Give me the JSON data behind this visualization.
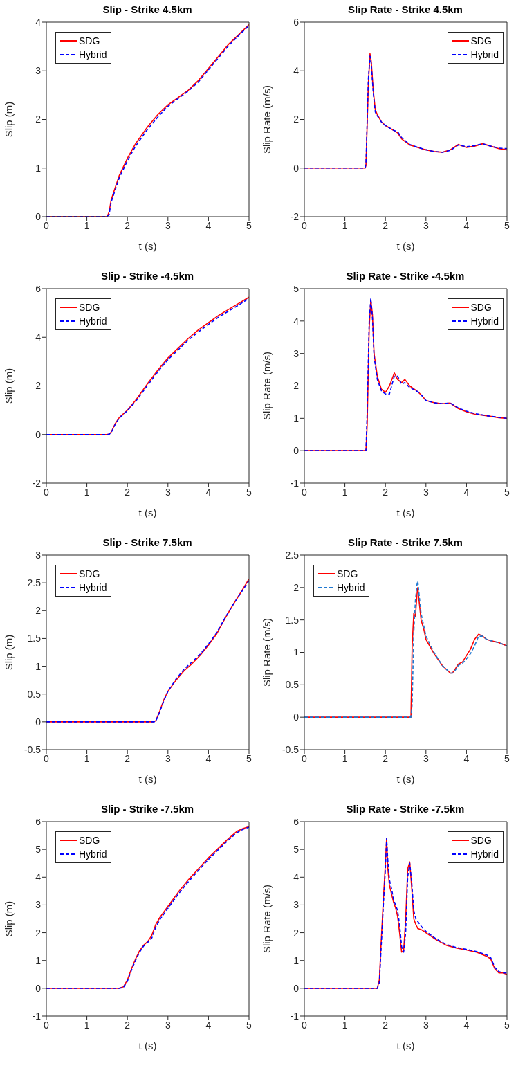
{
  "chart_data": [
    {
      "type": "line",
      "title": "Slip - Strike 4.5km",
      "xlabel": "t (s)",
      "ylabel": "Slip (m)",
      "xlim": [
        0,
        5
      ],
      "xticks": [
        0,
        1,
        2,
        3,
        4,
        5
      ],
      "ylim": [
        0,
        4
      ],
      "yticks": [
        0,
        1,
        2,
        3,
        4
      ],
      "legend": "top left",
      "marker": "none",
      "x": [
        0,
        1.5,
        1.55,
        1.6,
        1.7,
        1.8,
        2,
        2.2,
        2.5,
        2.75,
        3,
        3.25,
        3.5,
        3.75,
        4,
        4.25,
        4.5,
        4.75,
        5
      ],
      "series": [
        {
          "name": "SDG",
          "color": "#ff0000",
          "line_style": "solid",
          "values": [
            0,
            0,
            0.1,
            0.35,
            0.6,
            0.85,
            1.2,
            1.5,
            1.85,
            2.1,
            2.3,
            2.45,
            2.6,
            2.8,
            3.05,
            3.3,
            3.55,
            3.75,
            3.95
          ]
        },
        {
          "name": "Hybrid",
          "color": "#0000ff",
          "line_style": "dashed",
          "values": [
            0,
            0,
            0.05,
            0.3,
            0.55,
            0.8,
            1.15,
            1.45,
            1.8,
            2.05,
            2.27,
            2.43,
            2.58,
            2.77,
            3.02,
            3.27,
            3.52,
            3.73,
            3.93
          ]
        }
      ]
    },
    {
      "type": "line",
      "title": "Slip Rate - Strike 4.5km",
      "xlabel": "t (s)",
      "ylabel": "Slip Rate (m/s)",
      "xlim": [
        0,
        5
      ],
      "xticks": [
        0,
        1,
        2,
        3,
        4,
        5
      ],
      "ylim": [
        -2,
        6
      ],
      "yticks": [
        -2,
        0,
        2,
        4,
        6
      ],
      "legend": "top right",
      "marker": "none",
      "x": [
        0,
        1.5,
        1.52,
        1.58,
        1.62,
        1.65,
        1.7,
        1.75,
        1.8,
        1.9,
        2,
        2.2,
        2.3,
        2.4,
        2.6,
        2.8,
        3,
        3.2,
        3.4,
        3.6,
        3.8,
        4,
        4.2,
        4.4,
        4.6,
        4.8,
        5
      ],
      "series": [
        {
          "name": "SDG",
          "color": "#ff0000",
          "line_style": "solid",
          "values": [
            0,
            0,
            0.1,
            3.5,
            4.7,
            4.4,
            3.2,
            2.4,
            2.2,
            1.9,
            1.75,
            1.55,
            1.45,
            1.2,
            0.95,
            0.85,
            0.75,
            0.68,
            0.65,
            0.75,
            0.97,
            0.85,
            0.9,
            1.0,
            0.9,
            0.8,
            0.75
          ]
        },
        {
          "name": "Hybrid",
          "color": "#0000ff",
          "line_style": "dashed",
          "values": [
            0,
            0,
            0.2,
            3.7,
            4.6,
            4.3,
            3.1,
            2.3,
            2.15,
            1.9,
            1.75,
            1.55,
            1.5,
            1.25,
            0.97,
            0.85,
            0.75,
            0.68,
            0.65,
            0.72,
            0.95,
            0.88,
            0.92,
            1.0,
            0.9,
            0.82,
            0.8
          ]
        }
      ]
    },
    {
      "type": "line",
      "title": "Slip - Strike -4.5km",
      "xlabel": "t (s)",
      "ylabel": "Slip (m)",
      "xlim": [
        0,
        5
      ],
      "xticks": [
        0,
        1,
        2,
        3,
        4,
        5
      ],
      "ylim": [
        -2,
        6
      ],
      "yticks": [
        -2,
        0,
        2,
        4,
        6
      ],
      "legend": "top left",
      "marker": "none",
      "x": [
        0,
        1.5,
        1.55,
        1.6,
        1.7,
        1.8,
        2,
        2.2,
        2.5,
        2.75,
        3,
        3.25,
        3.5,
        3.75,
        4,
        4.25,
        4.5,
        4.75,
        5
      ],
      "series": [
        {
          "name": "SDG",
          "color": "#ff0000",
          "line_style": "solid",
          "values": [
            0,
            0,
            0.02,
            0.1,
            0.45,
            0.7,
            1.0,
            1.4,
            2.1,
            2.65,
            3.15,
            3.55,
            3.95,
            4.3,
            4.6,
            4.9,
            5.15,
            5.4,
            5.65
          ]
        },
        {
          "name": "Hybrid",
          "color": "#0000ff",
          "line_style": "dashed",
          "values": [
            0,
            0,
            0.01,
            0.08,
            0.42,
            0.68,
            0.98,
            1.35,
            2.03,
            2.58,
            3.08,
            3.48,
            3.88,
            4.22,
            4.53,
            4.83,
            5.08,
            5.33,
            5.6
          ]
        }
      ]
    },
    {
      "type": "line",
      "title": "Slip Rate - Strike -4.5km",
      "xlabel": "t (s)",
      "ylabel": "Slip Rate (m/s)",
      "xlim": [
        0,
        5
      ],
      "xticks": [
        0,
        1,
        2,
        3,
        4,
        5
      ],
      "ylim": [
        -1,
        5
      ],
      "yticks": [
        -1,
        0,
        1,
        2,
        3,
        4,
        5
      ],
      "legend": "top right",
      "marker": "none",
      "x": [
        0,
        1.52,
        1.55,
        1.6,
        1.64,
        1.68,
        1.72,
        1.8,
        1.9,
        2,
        2.1,
        2.22,
        2.3,
        2.4,
        2.48,
        2.6,
        2.8,
        2.9,
        3,
        3.2,
        3.4,
        3.6,
        3.8,
        4,
        4.2,
        4.5,
        4.8,
        5
      ],
      "series": [
        {
          "name": "SDG",
          "color": "#ff0000",
          "line_style": "solid",
          "values": [
            0,
            0,
            0.8,
            3.8,
            4.65,
            4.2,
            3.0,
            2.3,
            1.9,
            1.8,
            2.0,
            2.4,
            2.2,
            2.1,
            2.2,
            2.0,
            1.82,
            1.7,
            1.55,
            1.48,
            1.45,
            1.47,
            1.3,
            1.2,
            1.13,
            1.08,
            1.02,
            1.0
          ]
        },
        {
          "name": "Hybrid",
          "color": "#0000ff",
          "line_style": "dashed",
          "values": [
            0,
            0,
            1.2,
            4.0,
            4.7,
            4.1,
            2.9,
            2.2,
            1.85,
            1.75,
            1.75,
            2.3,
            2.3,
            2.05,
            2.1,
            1.95,
            1.82,
            1.7,
            1.55,
            1.48,
            1.45,
            1.47,
            1.32,
            1.22,
            1.15,
            1.08,
            1.03,
            1.0
          ]
        }
      ]
    },
    {
      "type": "line",
      "title": "Slip - Strike 7.5km",
      "xlabel": "t (s)",
      "ylabel": "Slip (m)",
      "xlim": [
        0,
        5
      ],
      "xticks": [
        0,
        1,
        2,
        3,
        4,
        5
      ],
      "ylim": [
        -0.5,
        3
      ],
      "yticks": [
        -0.5,
        0,
        0.5,
        1,
        1.5,
        2,
        2.5,
        3
      ],
      "legend": "top left",
      "marker": "none",
      "x": [
        0,
        2.65,
        2.7,
        2.8,
        2.9,
        3,
        3.2,
        3.4,
        3.6,
        3.8,
        4,
        4.2,
        4.4,
        4.6,
        4.8,
        5
      ],
      "series": [
        {
          "name": "SDG",
          "color": "#ff0000",
          "line_style": "solid",
          "values": [
            0,
            0,
            0.02,
            0.2,
            0.4,
            0.55,
            0.75,
            0.92,
            1.05,
            1.2,
            1.38,
            1.58,
            1.85,
            2.1,
            2.33,
            2.57
          ]
        },
        {
          "name": "Hybrid",
          "color": "#0000ff",
          "line_style": "dashed",
          "values": [
            0,
            0,
            0.01,
            0.18,
            0.38,
            0.55,
            0.77,
            0.95,
            1.08,
            1.22,
            1.4,
            1.6,
            1.86,
            2.1,
            2.32,
            2.54
          ]
        }
      ]
    },
    {
      "type": "line",
      "title": "Slip Rate - Strike 7.5km",
      "xlabel": "t (s)",
      "ylabel": "Slip Rate (m/s)",
      "xlim": [
        0,
        5
      ],
      "xticks": [
        0,
        1,
        2,
        3,
        4,
        5
      ],
      "ylim": [
        -0.5,
        2.5
      ],
      "yticks": [
        -0.5,
        0,
        0.5,
        1,
        1.5,
        2,
        2.5
      ],
      "legend": "top left",
      "marker": "none",
      "x": [
        0,
        2.63,
        2.66,
        2.7,
        2.74,
        2.78,
        2.8,
        2.83,
        2.88,
        2.95,
        3,
        3.2,
        3.4,
        3.6,
        3.65,
        3.7,
        3.8,
        3.9,
        4,
        4.1,
        4.2,
        4.3,
        4.4,
        4.5,
        4.6,
        4.8,
        5
      ],
      "series": [
        {
          "name": "SDG",
          "color": "#ff0000",
          "line_style": "solid",
          "values": [
            0,
            0,
            1.1,
            1.6,
            1.55,
            1.9,
            2.0,
            1.8,
            1.5,
            1.35,
            1.2,
            0.98,
            0.8,
            0.68,
            0.68,
            0.72,
            0.82,
            0.85,
            0.95,
            1.05,
            1.2,
            1.28,
            1.25,
            1.2,
            1.18,
            1.15,
            1.1
          ]
        },
        {
          "name": "Hybrid",
          "color": "#1f78d1",
          "line_style": "dashed",
          "values": [
            0,
            0,
            0.2,
            1.3,
            1.8,
            2.05,
            2.1,
            1.9,
            1.6,
            1.4,
            1.25,
            1.0,
            0.8,
            0.68,
            0.68,
            0.7,
            0.8,
            0.83,
            0.9,
            0.98,
            1.1,
            1.25,
            1.25,
            1.2,
            1.18,
            1.15,
            1.1
          ]
        }
      ]
    },
    {
      "type": "line",
      "title": "Slip - Strike -7.5km",
      "xlabel": "t (s)",
      "ylabel": "Slip (m)",
      "xlim": [
        0,
        5
      ],
      "xticks": [
        0,
        1,
        2,
        3,
        4,
        5
      ],
      "ylim": [
        -1,
        6
      ],
      "yticks": [
        -1,
        0,
        1,
        2,
        3,
        4,
        5,
        6
      ],
      "legend": "top left",
      "marker": "none",
      "x": [
        0,
        1.8,
        1.9,
        2,
        2.1,
        2.2,
        2.3,
        2.4,
        2.5,
        2.6,
        2.7,
        2.8,
        3,
        3.25,
        3.5,
        3.75,
        4,
        4.25,
        4.5,
        4.7,
        4.85,
        5
      ],
      "series": [
        {
          "name": "SDG",
          "color": "#ff0000",
          "line_style": "solid",
          "values": [
            0,
            0,
            0.05,
            0.3,
            0.7,
            1.05,
            1.35,
            1.55,
            1.68,
            1.9,
            2.3,
            2.55,
            2.95,
            3.45,
            3.9,
            4.3,
            4.7,
            5.05,
            5.4,
            5.65,
            5.75,
            5.82
          ]
        },
        {
          "name": "Hybrid",
          "color": "#0000ff",
          "line_style": "dashed",
          "values": [
            0,
            0,
            0.03,
            0.25,
            0.65,
            1.0,
            1.3,
            1.52,
            1.65,
            1.8,
            2.2,
            2.47,
            2.88,
            3.38,
            3.83,
            4.24,
            4.64,
            5.0,
            5.35,
            5.6,
            5.72,
            5.8
          ]
        }
      ]
    },
    {
      "type": "line",
      "title": "Slip Rate - Strike -7.5km",
      "xlabel": "t (s)",
      "ylabel": "Slip Rate (m/s)",
      "xlim": [
        0,
        5
      ],
      "xticks": [
        0,
        1,
        2,
        3,
        4,
        5
      ],
      "ylim": [
        -1,
        6
      ],
      "yticks": [
        -1,
        0,
        1,
        2,
        3,
        4,
        5,
        6
      ],
      "legend": "top right",
      "marker": "none",
      "x": [
        0,
        1.8,
        1.85,
        1.9,
        1.95,
        2,
        2.03,
        2.06,
        2.1,
        2.15,
        2.2,
        2.25,
        2.3,
        2.35,
        2.4,
        2.45,
        2.5,
        2.55,
        2.6,
        2.65,
        2.7,
        2.75,
        2.8,
        2.9,
        3,
        3.25,
        3.5,
        3.75,
        4,
        4.25,
        4.5,
        4.6,
        4.7,
        4.8,
        4.9,
        5
      ],
      "series": [
        {
          "name": "SDG",
          "color": "#ff0000",
          "line_style": "solid",
          "values": [
            0,
            0,
            0.3,
            1.8,
            3.2,
            4.5,
            5.4,
            4.3,
            3.7,
            3.4,
            3.1,
            2.9,
            2.6,
            2.0,
            1.3,
            1.35,
            2.5,
            4.3,
            4.55,
            3.6,
            2.5,
            2.3,
            2.15,
            2.1,
            2.0,
            1.75,
            1.55,
            1.45,
            1.38,
            1.3,
            1.15,
            1.05,
            0.7,
            0.55,
            0.55,
            0.5
          ]
        },
        {
          "name": "Hybrid",
          "color": "#0000ff",
          "line_style": "dashed",
          "values": [
            0,
            0,
            0.2,
            1.6,
            3.0,
            4.3,
            5.4,
            4.6,
            3.9,
            3.6,
            3.2,
            3.0,
            2.8,
            2.3,
            1.5,
            1.3,
            2.0,
            4.0,
            4.5,
            3.8,
            2.8,
            2.5,
            2.4,
            2.2,
            2.05,
            1.78,
            1.58,
            1.47,
            1.4,
            1.32,
            1.2,
            1.1,
            0.75,
            0.6,
            0.55,
            0.55
          ]
        }
      ]
    }
  ]
}
